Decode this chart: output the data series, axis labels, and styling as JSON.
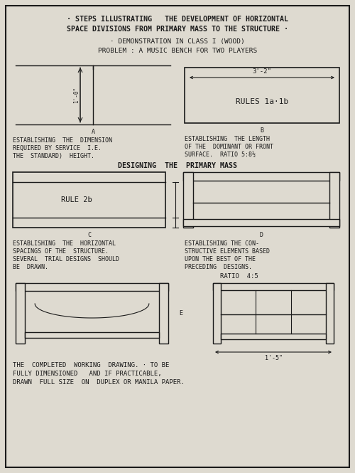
{
  "bg_color": "#dedad0",
  "border_color": "#1a1a1a",
  "text_color": "#1a1a1a",
  "title_line1": "· STEPS ILLUSTRATING   THE DEVELOPMENT OF HORIZONTAL",
  "title_line2": "SPACE DIVISIONS FROM PRIMARY MASS TO THE STRUCTURE ·",
  "subtitle1": "· DEMONSTRATION IN CLASS I (WOOD)",
  "subtitle2": "PROBLEM : A MUSIC BENCH FOR TWO PLAYERS",
  "panel_a_label": "A",
  "panel_b_label": "B",
  "panel_c_label": "C",
  "panel_d_label": "D",
  "panel_e_label": "E",
  "dim_a": "1'-0\"",
  "dim_b": "3'-2\"",
  "dim_e": "1'-5\"",
  "rules_text": "RULES 1a·1b",
  "rule2b_text": "RULE 2b",
  "ratio_45": "RATIO  4:5",
  "designing_text": "DESIGNING  THE  PRIMARY MASS",
  "cap_a1": "ESTABLISHING  THE  DIMENSION",
  "cap_a2": "REQUIRED BY SERVICE  I.E.",
  "cap_a3": "THE  STANDARD)  HEIGHT.",
  "cap_b1": "ESTABLISHING  THE LENGTH",
  "cap_b2": "OF THE  DOMINANT OR FRONT",
  "cap_b3": "SURFACE.  RATIO 5:8½",
  "cap_c1": "ESTABLISHING  THE  HORIZONTAL",
  "cap_c2": "SPACINGS OF THE  STRUCTURE.",
  "cap_c3": "SEVERAL  TRIAL DESIGNS  SHOULD",
  "cap_c4": "BE  DRAWN.",
  "cap_d1": "ESTABLISHING THE CON-",
  "cap_d2": "STRUCTIVE ELEMENTS BASED",
  "cap_d3": "UPON THE BEST OF THE",
  "cap_d4": "PRECEDING  DESIGNS.",
  "cap_e1": "THE  COMPLETED  WORKING  DRAWING. · TO BE",
  "cap_e2": "FULLY DIMENSIONED   AND IF PRACTICABLE,",
  "cap_e3": "DRAWN  FULL SIZE  ON  DUPLEX OR MANILA PAPER."
}
